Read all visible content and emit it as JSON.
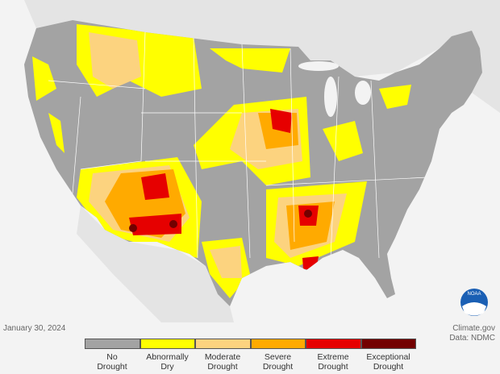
{
  "map": {
    "date": "January 30, 2024",
    "credit": "Climate.gov",
    "source": "Data: NDMC",
    "logo_text": "NOAA"
  },
  "legend": {
    "items": [
      {
        "lines": [
          "No",
          "Drought"
        ],
        "color": "#a3a3a3"
      },
      {
        "lines": [
          "Abnormally",
          "Dry"
        ],
        "color": "#ffff00"
      },
      {
        "lines": [
          "Moderate",
          "Drought"
        ],
        "color": "#fcd37f"
      },
      {
        "lines": [
          "Severe",
          "Drought"
        ],
        "color": "#ffaa00"
      },
      {
        "lines": [
          "Extreme",
          "Drought"
        ],
        "color": "#e60000"
      },
      {
        "lines": [
          "Exceptional",
          "Drought"
        ],
        "color": "#730000"
      }
    ]
  }
}
